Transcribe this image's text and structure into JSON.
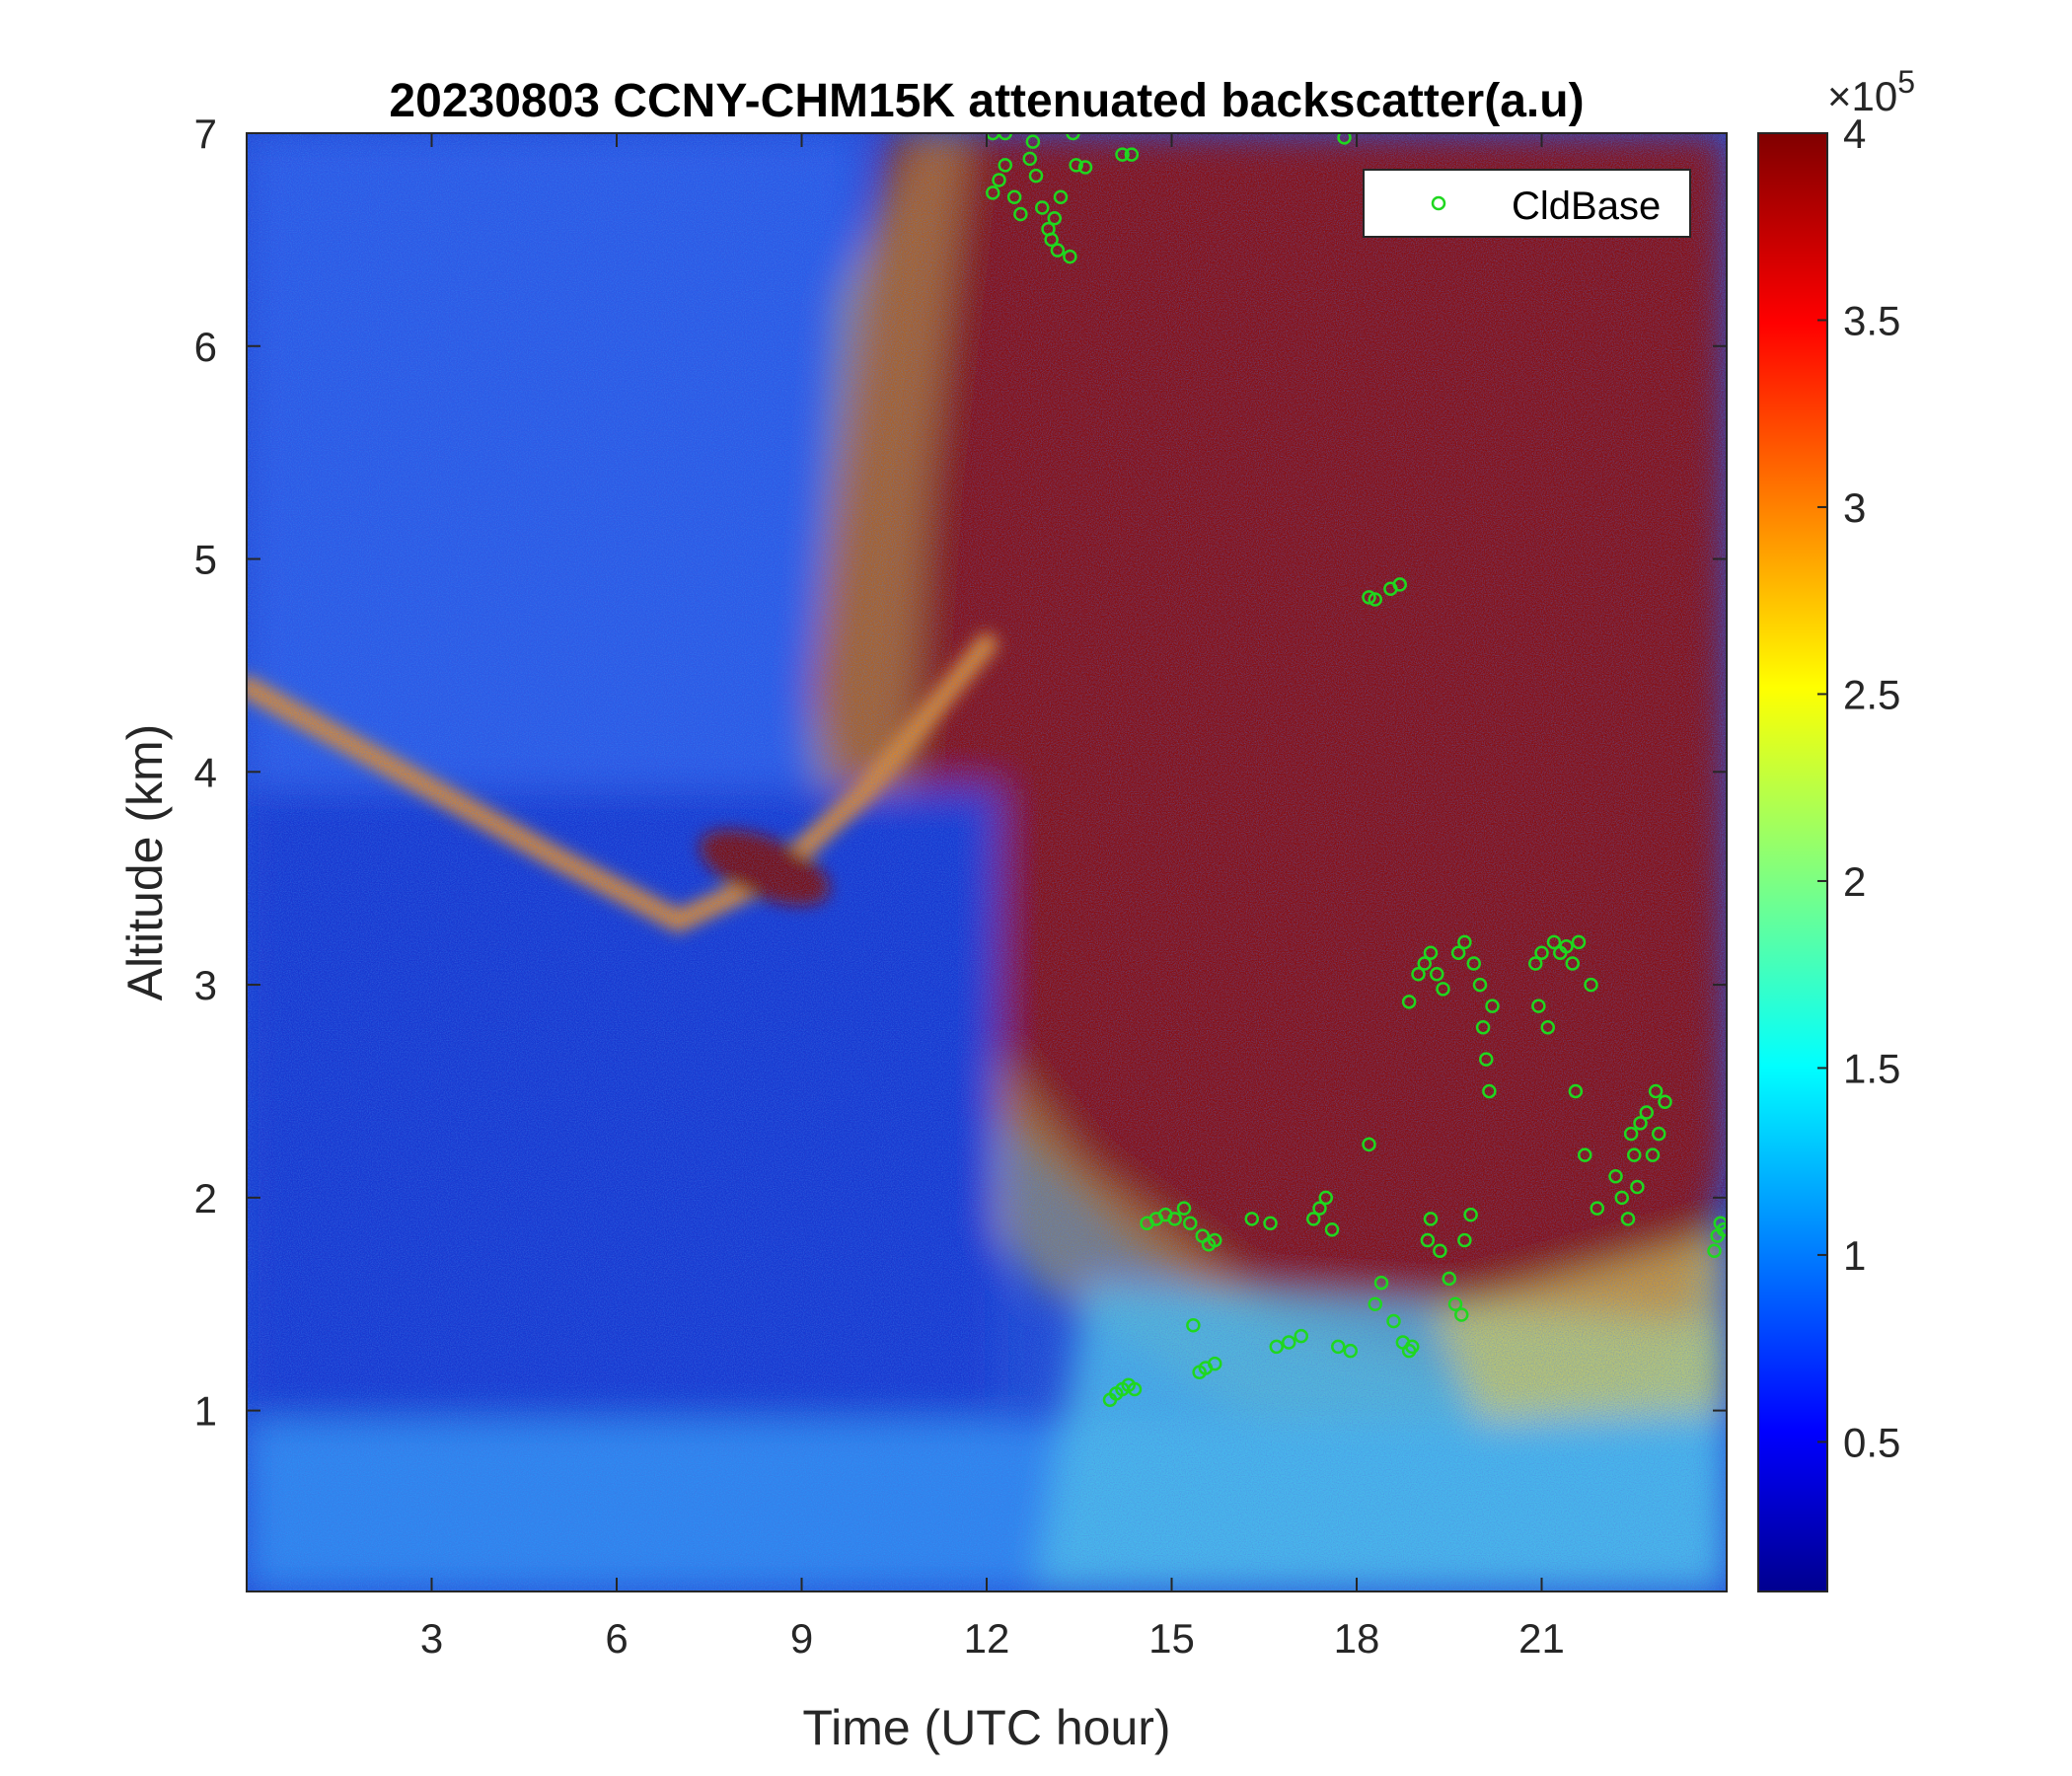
{
  "chart_data": {
    "type": "heatmap",
    "title": "20230803 CCNY-CHM15K attenuated backscatter(a.u)",
    "xlabel": "Time (UTC hour)",
    "ylabel": "Altitude (km)",
    "xlim": [
      0,
      24
    ],
    "ylim": [
      0.15,
      7
    ],
    "xticks": [
      3,
      6,
      9,
      12,
      15,
      18,
      21
    ],
    "yticks": [
      1,
      2,
      3,
      4,
      5,
      6,
      7
    ],
    "colorbar": {
      "colormap": "jet",
      "clim": [
        0.1,
        4
      ],
      "ticks": [
        0.5,
        1,
        1.5,
        2,
        2.5,
        3,
        3.5,
        4
      ],
      "exponent_label": "×10",
      "exponent_power": "5"
    },
    "legend": {
      "position": "top-right",
      "entries": [
        "CldBase"
      ]
    },
    "colors": {
      "cldbase_marker": "#1fd71f"
    },
    "features": [
      {
        "name": "aerosol layer",
        "points": [
          [
            0,
            4.4
          ],
          [
            2.5,
            4.0
          ],
          [
            5,
            3.6
          ],
          [
            7,
            3.3
          ],
          [
            8.5,
            3.5
          ],
          [
            10,
            3.9
          ],
          [
            12,
            4.6
          ]
        ]
      },
      {
        "name": "dense layer",
        "points": [
          [
            7.6,
            3.7
          ],
          [
            9.2,
            3.4
          ]
        ]
      }
    ],
    "series": [
      {
        "name": "CldBase",
        "type": "scatter",
        "points": [
          [
            12.1,
            6.72
          ],
          [
            12.2,
            6.78
          ],
          [
            12.3,
            6.85
          ],
          [
            12.45,
            6.7
          ],
          [
            12.55,
            6.62
          ],
          [
            12.7,
            6.88
          ],
          [
            12.75,
            6.96
          ],
          [
            12.8,
            6.8
          ],
          [
            12.9,
            6.65
          ],
          [
            13.0,
            6.55
          ],
          [
            13.05,
            6.5
          ],
          [
            13.1,
            6.6
          ],
          [
            13.15,
            6.45
          ],
          [
            13.2,
            6.7
          ],
          [
            13.35,
            6.42
          ],
          [
            13.45,
            6.85
          ],
          [
            13.6,
            6.84
          ],
          [
            14.2,
            6.9
          ],
          [
            14.35,
            6.9
          ],
          [
            12.1,
            7.0
          ],
          [
            12.3,
            7.0
          ],
          [
            13.4,
            7.0
          ],
          [
            17.8,
            6.98
          ],
          [
            18.2,
            4.82
          ],
          [
            18.3,
            4.81
          ],
          [
            18.55,
            4.86
          ],
          [
            18.7,
            4.88
          ],
          [
            14.0,
            1.05
          ],
          [
            14.1,
            1.08
          ],
          [
            14.2,
            1.1
          ],
          [
            14.3,
            1.12
          ],
          [
            14.4,
            1.1
          ],
          [
            14.6,
            1.88
          ],
          [
            14.75,
            1.9
          ],
          [
            14.9,
            1.92
          ],
          [
            15.05,
            1.9
          ],
          [
            15.2,
            1.95
          ],
          [
            15.3,
            1.88
          ],
          [
            15.5,
            1.82
          ],
          [
            15.6,
            1.78
          ],
          [
            15.7,
            1.8
          ],
          [
            15.35,
            1.4
          ],
          [
            15.45,
            1.18
          ],
          [
            15.55,
            1.2
          ],
          [
            15.7,
            1.22
          ],
          [
            16.3,
            1.9
          ],
          [
            16.6,
            1.88
          ],
          [
            16.7,
            1.3
          ],
          [
            16.9,
            1.32
          ],
          [
            17.1,
            1.35
          ],
          [
            17.3,
            1.9
          ],
          [
            17.4,
            1.95
          ],
          [
            17.5,
            2.0
          ],
          [
            17.6,
            1.85
          ],
          [
            17.7,
            1.3
          ],
          [
            17.9,
            1.28
          ],
          [
            18.2,
            2.25
          ],
          [
            18.3,
            1.5
          ],
          [
            18.4,
            1.6
          ],
          [
            18.6,
            1.42
          ],
          [
            18.75,
            1.32
          ],
          [
            18.85,
            1.28
          ],
          [
            18.9,
            1.3
          ],
          [
            18.85,
            2.92
          ],
          [
            19.0,
            3.05
          ],
          [
            19.1,
            3.1
          ],
          [
            19.2,
            3.15
          ],
          [
            19.3,
            3.05
          ],
          [
            19.4,
            2.98
          ],
          [
            19.15,
            1.8
          ],
          [
            19.2,
            1.9
          ],
          [
            19.35,
            1.75
          ],
          [
            19.5,
            1.62
          ],
          [
            19.6,
            1.5
          ],
          [
            19.7,
            1.45
          ],
          [
            19.75,
            1.8
          ],
          [
            19.85,
            1.92
          ],
          [
            19.65,
            3.15
          ],
          [
            19.75,
            3.2
          ],
          [
            19.9,
            3.1
          ],
          [
            20.0,
            3.0
          ],
          [
            20.05,
            2.8
          ],
          [
            20.1,
            2.65
          ],
          [
            20.15,
            2.5
          ],
          [
            20.2,
            2.9
          ],
          [
            20.9,
            3.1
          ],
          [
            20.95,
            2.9
          ],
          [
            21.0,
            3.15
          ],
          [
            21.1,
            2.8
          ],
          [
            21.2,
            3.2
          ],
          [
            21.3,
            3.15
          ],
          [
            21.4,
            3.18
          ],
          [
            21.5,
            3.1
          ],
          [
            21.55,
            2.5
          ],
          [
            21.6,
            3.2
          ],
          [
            21.7,
            2.2
          ],
          [
            21.8,
            3.0
          ],
          [
            21.9,
            1.95
          ],
          [
            22.2,
            2.1
          ],
          [
            22.3,
            2.0
          ],
          [
            22.4,
            1.9
          ],
          [
            22.45,
            2.3
          ],
          [
            22.5,
            2.2
          ],
          [
            22.55,
            2.05
          ],
          [
            22.6,
            2.35
          ],
          [
            22.7,
            2.4
          ],
          [
            22.8,
            2.2
          ],
          [
            22.85,
            2.5
          ],
          [
            22.9,
            2.3
          ],
          [
            23.0,
            2.45
          ],
          [
            23.8,
            1.75
          ],
          [
            23.85,
            1.82
          ],
          [
            23.9,
            1.88
          ],
          [
            23.95,
            1.85
          ]
        ]
      }
    ]
  }
}
